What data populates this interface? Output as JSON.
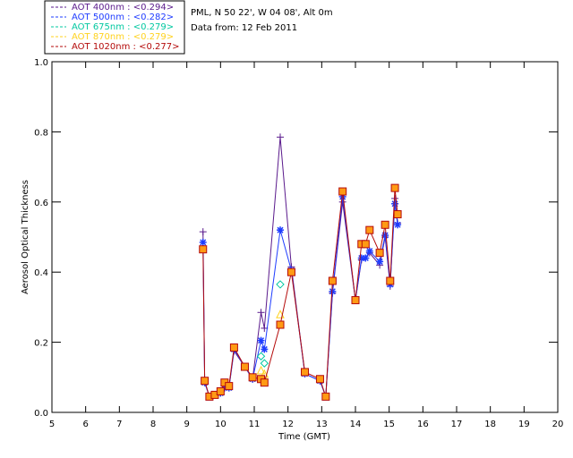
{
  "header": {
    "location": "PML, N 50 22', W 04 08', Alt 0m",
    "date_line": "Data from: 12 Feb 2011"
  },
  "chart_data": {
    "type": "line",
    "xlabel": "Time (GMT)",
    "ylabel": "Aerosol Optical Thickness",
    "xlim": [
      5,
      20
    ],
    "ylim": [
      0,
      1
    ],
    "xticks": [
      5,
      6,
      7,
      8,
      9,
      10,
      11,
      12,
      13,
      14,
      15,
      16,
      17,
      18,
      19,
      20
    ],
    "yticks": [
      "0.0",
      "0.2",
      "0.4",
      "0.6",
      "0.8",
      "1.0"
    ],
    "ytick_values": [
      0,
      0.2,
      0.4,
      0.6,
      0.8,
      1.0
    ],
    "legend_position": "top-left",
    "series": [
      {
        "name": "AOT  400nm : <0.294>",
        "color": "#5a1a8c",
        "marker": "plus",
        "x": [
          9.48,
          9.53,
          9.67,
          9.83,
          10.0,
          10.12,
          10.25,
          10.4,
          10.72,
          10.95,
          11.2,
          11.3,
          11.77,
          12.1,
          12.5,
          12.95,
          13.12,
          13.32,
          13.62,
          14.0,
          14.18,
          14.3,
          14.42,
          14.72,
          14.88,
          15.03,
          15.17,
          15.25
        ],
        "y": [
          0.515,
          0.085,
          0.045,
          0.05,
          0.055,
          0.07,
          0.07,
          0.175,
          0.13,
          0.095,
          0.285,
          0.24,
          0.785,
          0.415,
          0.11,
          0.09,
          0.045,
          0.34,
          0.6,
          0.32,
          0.435,
          0.44,
          0.455,
          0.42,
          0.5,
          0.36,
          0.61,
          0.54
        ]
      },
      {
        "name": "AOT  500nm : <0.282>",
        "color": "#1e3cff",
        "marker": "star",
        "x": [
          9.48,
          9.53,
          9.67,
          9.83,
          10.0,
          10.12,
          10.25,
          10.4,
          10.72,
          10.95,
          11.2,
          11.3,
          11.77,
          12.1,
          12.5,
          12.95,
          13.12,
          13.32,
          13.62,
          14.0,
          14.18,
          14.3,
          14.42,
          14.72,
          14.88,
          15.03,
          15.17,
          15.25
        ],
        "y": [
          0.485,
          0.085,
          0.045,
          0.05,
          0.055,
          0.07,
          0.07,
          0.18,
          0.13,
          0.095,
          0.205,
          0.18,
          0.52,
          0.405,
          0.11,
          0.09,
          0.045,
          0.345,
          0.615,
          0.32,
          0.44,
          0.44,
          0.46,
          0.43,
          0.505,
          0.365,
          0.595,
          0.535
        ]
      },
      {
        "name": "AOT  675nm : <0.279>",
        "color": "#00c8a0",
        "marker": "diamond",
        "x": [
          11.2,
          11.3,
          11.77
        ],
        "y": [
          0.16,
          0.14,
          0.365
        ]
      },
      {
        "name": "AOT  870nm : <0.279>",
        "color": "#ffd21e",
        "marker": "triangle",
        "x": [
          11.2,
          11.3,
          11.77
        ],
        "y": [
          0.12,
          0.11,
          0.28
        ]
      },
      {
        "name": "AOT 1020nm : <0.277>",
        "color": "#b40a0a",
        "marker": "square",
        "x": [
          9.48,
          9.53,
          9.67,
          9.83,
          10.0,
          10.12,
          10.25,
          10.4,
          10.72,
          10.95,
          11.2,
          11.3,
          11.77,
          12.1,
          12.5,
          12.95,
          13.12,
          13.32,
          13.62,
          14.0,
          14.18,
          14.3,
          14.42,
          14.72,
          14.88,
          15.03,
          15.17,
          15.25
        ],
        "y": [
          0.465,
          0.09,
          0.045,
          0.05,
          0.06,
          0.085,
          0.075,
          0.185,
          0.13,
          0.1,
          0.095,
          0.085,
          0.25,
          0.4,
          0.115,
          0.095,
          0.045,
          0.375,
          0.63,
          0.32,
          0.48,
          0.48,
          0.52,
          0.455,
          0.535,
          0.375,
          0.64,
          0.565
        ]
      }
    ],
    "connected_series": [
      0,
      1,
      4
    ],
    "marker_face_colors": {
      "square": "#ff9a14"
    }
  }
}
